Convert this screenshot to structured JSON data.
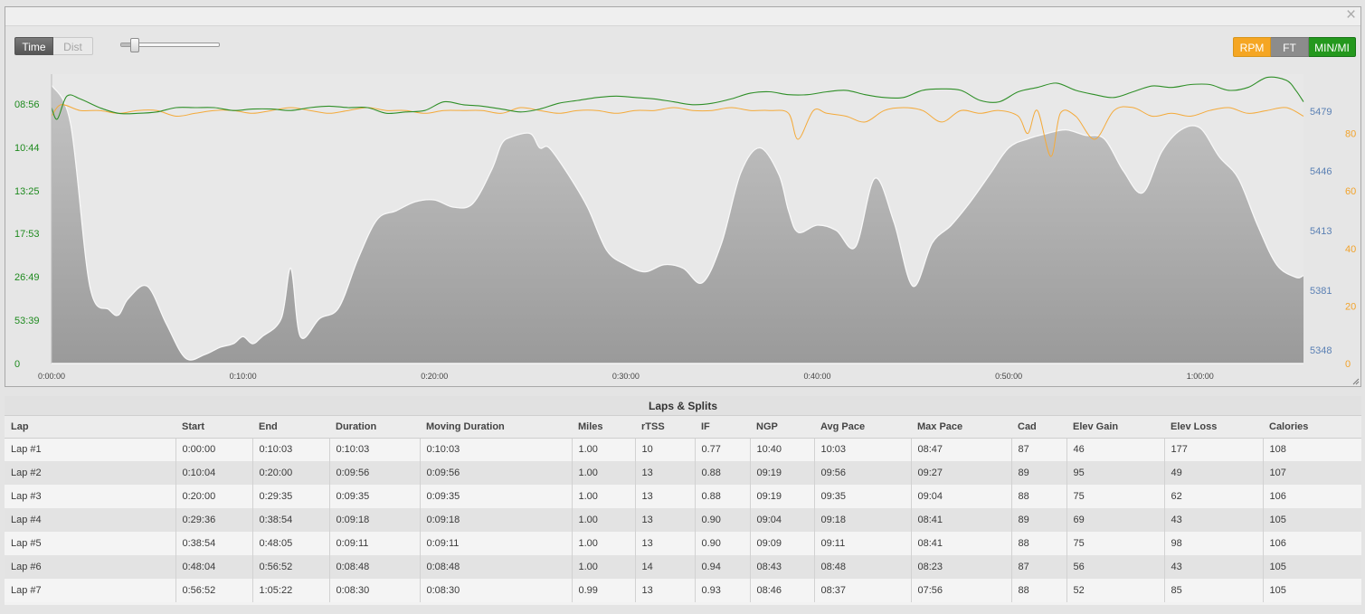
{
  "chart": {
    "close_glyph": "×",
    "xaxis_toggle": {
      "time_label": "Time",
      "dist_label": "Dist",
      "selected": "time"
    },
    "zoom_slider": {
      "value": 0.1
    },
    "series_buttons": [
      {
        "label": "RPM",
        "color": "#f5a623",
        "active": true
      },
      {
        "label": "FT",
        "color": "#8c8c8c",
        "active": true
      },
      {
        "label": "MIN/MI",
        "color": "#24981d",
        "active": true
      }
    ],
    "colors": {
      "elevation_fill": "#b9b9b9",
      "elevation_stroke": "#f8f8f8",
      "pace_line": "#2f8f28",
      "cadence_line": "#f4aa3a",
      "pace_axis": "#1e8a1e",
      "elev_axis": "#5b80b4",
      "cad_axis": "#f2a32b"
    },
    "left_axis_labels": [
      "08:56",
      "10:44",
      "13:25",
      "17:53",
      "26:49",
      "53:39",
      "0"
    ],
    "right_axis_elev": [
      "5479",
      "5446",
      "5413",
      "5381",
      "5348"
    ],
    "right_axis_cad": [
      "80",
      "60",
      "40",
      "20",
      "0"
    ],
    "x_ticks": [
      "0:00:00",
      "0:10:00",
      "0:20:00",
      "0:30:00",
      "0:40:00",
      "0:50:00",
      "1:00:00"
    ],
    "chart_data": {
      "type": "area",
      "xlabel": "Time",
      "x_unit": "minutes",
      "xlim": [
        0,
        65.4
      ],
      "series": [
        {
          "name": "Elevation (ft)",
          "axis": "right-inner",
          "ylim": [
            5335,
            5495
          ],
          "x": [
            0,
            1,
            2,
            3,
            3.5,
            4,
            5,
            6,
            7,
            8,
            8.8,
            9.5,
            10,
            10.5,
            11,
            12,
            12.5,
            13,
            14,
            15,
            16,
            17,
            18,
            19,
            20,
            21,
            22,
            23,
            23.5,
            24,
            25,
            25.5,
            26,
            27,
            28,
            29,
            30,
            31,
            32,
            33,
            34,
            35,
            36,
            37,
            38,
            38.5,
            39,
            40,
            41,
            42,
            43,
            44,
            45,
            46,
            47,
            48,
            49,
            50,
            51,
            52,
            53,
            54,
            55,
            56,
            57,
            58,
            59,
            60,
            61,
            62,
            63,
            64,
            65,
            65.4
          ],
          "values": [
            5490,
            5468,
            5378,
            5365,
            5362,
            5371,
            5378,
            5357,
            5338,
            5340,
            5344,
            5346,
            5350,
            5346,
            5350,
            5360,
            5388,
            5350,
            5360,
            5366,
            5393,
            5415,
            5420,
            5425,
            5426,
            5422,
            5424,
            5443,
            5457,
            5461,
            5463,
            5455,
            5455,
            5440,
            5422,
            5398,
            5390,
            5386,
            5390,
            5388,
            5380,
            5402,
            5441,
            5455,
            5440,
            5420,
            5408,
            5412,
            5409,
            5400,
            5438,
            5414,
            5378,
            5402,
            5412,
            5425,
            5440,
            5455,
            5460,
            5463,
            5465,
            5462,
            5460,
            5442,
            5430,
            5453,
            5465,
            5466,
            5450,
            5438,
            5412,
            5390,
            5383,
            5384
          ]
        },
        {
          "name": "Pace (min/mi)",
          "axis": "left",
          "ylim": [
            0,
            1
          ],
          "x": [
            0,
            0.3,
            0.8,
            1.5,
            2.5,
            3.5,
            4.5,
            5.5,
            6.5,
            7.5,
            8.5,
            9.5,
            10.5,
            11.5,
            12.5,
            13.5,
            14.5,
            15.5,
            16.5,
            17.5,
            18.5,
            19.5,
            20.5,
            21.5,
            22.5,
            23.5,
            24.5,
            25.5,
            26.5,
            27.5,
            28.5,
            29.5,
            30.5,
            31.5,
            32.5,
            33.5,
            34.5,
            35.5,
            36.5,
            37.5,
            38.5,
            39.5,
            40.5,
            41.5,
            42.5,
            43.5,
            44.5,
            45.5,
            46.5,
            47.5,
            48.5,
            49.5,
            50.5,
            51.5,
            52.5,
            53.5,
            54.5,
            55.5,
            56.5,
            57.5,
            58.5,
            59.5,
            60.5,
            61.5,
            62.5,
            63.5,
            64.5,
            65,
            65.4
          ],
          "values": [
            0.89,
            0.85,
            0.93,
            0.92,
            0.89,
            0.87,
            0.87,
            0.875,
            0.89,
            0.89,
            0.89,
            0.88,
            0.885,
            0.885,
            0.88,
            0.89,
            0.895,
            0.89,
            0.89,
            0.87,
            0.875,
            0.88,
            0.91,
            0.9,
            0.895,
            0.885,
            0.875,
            0.885,
            0.905,
            0.915,
            0.925,
            0.93,
            0.925,
            0.92,
            0.91,
            0.9,
            0.905,
            0.92,
            0.94,
            0.945,
            0.935,
            0.935,
            0.945,
            0.95,
            0.935,
            0.925,
            0.925,
            0.95,
            0.955,
            0.95,
            0.915,
            0.91,
            0.945,
            0.96,
            0.975,
            0.95,
            0.935,
            0.925,
            0.945,
            0.965,
            0.96,
            0.97,
            0.97,
            0.95,
            0.96,
            0.995,
            0.985,
            0.95,
            0.91
          ]
        },
        {
          "name": "Cadence (rpm)",
          "axis": "right-outer",
          "ylim": [
            0,
            100
          ],
          "x": [
            0,
            0.5,
            1.5,
            2.5,
            3.5,
            4.5,
            5.5,
            6.5,
            7.5,
            8.5,
            9.5,
            10.5,
            11.5,
            12.5,
            13.5,
            14.5,
            15.5,
            16.5,
            17.5,
            18.5,
            19.5,
            20.5,
            21.5,
            22.5,
            23.5,
            24.5,
            25.5,
            26.5,
            27.5,
            28.5,
            29.5,
            30.5,
            31.5,
            32.5,
            33.5,
            34.5,
            35.5,
            36.5,
            37.5,
            38.5,
            39,
            39.8,
            40.5,
            41.5,
            42.5,
            43.5,
            44.5,
            45.5,
            46.5,
            47.5,
            48.5,
            49.5,
            50.5,
            51,
            51.5,
            52.2,
            52.7,
            53.5,
            54.5,
            55.5,
            56.5,
            57.5,
            58.5,
            59.5,
            60.5,
            61.5,
            62.5,
            63.5,
            64.5,
            65.4
          ],
          "values": [
            86,
            90,
            88,
            88,
            87,
            88,
            88,
            86,
            87,
            88,
            88,
            87,
            88,
            89,
            88,
            87,
            88,
            89,
            88,
            88,
            87,
            88,
            88,
            88,
            87,
            89,
            88,
            87,
            88,
            88,
            87,
            88,
            88,
            89,
            88,
            88,
            89,
            88,
            88,
            87,
            78,
            88,
            87,
            86,
            84,
            88,
            89,
            88,
            84,
            88,
            87,
            88,
            86,
            80,
            88,
            72,
            87,
            86,
            78,
            88,
            89,
            86,
            87,
            86,
            88,
            89,
            87,
            88,
            89,
            86
          ]
        }
      ]
    }
  },
  "laps": {
    "title": "Laps & Splits",
    "columns": [
      "Lap",
      "Start",
      "End",
      "Duration",
      "Moving Duration",
      "Miles",
      "rTSS",
      "IF",
      "NGP",
      "Avg Pace",
      "Max Pace",
      "Cad",
      "Elev Gain",
      "Elev Loss",
      "Calories"
    ],
    "rows": [
      [
        "Lap #1",
        "0:00:00",
        "0:10:03",
        "0:10:03",
        "0:10:03",
        "1.00",
        "10",
        "0.77",
        "10:40",
        "10:03",
        "08:47",
        "87",
        "46",
        "177",
        "108"
      ],
      [
        "Lap #2",
        "0:10:04",
        "0:20:00",
        "0:09:56",
        "0:09:56",
        "1.00",
        "13",
        "0.88",
        "09:19",
        "09:56",
        "09:27",
        "89",
        "95",
        "49",
        "107"
      ],
      [
        "Lap #3",
        "0:20:00",
        "0:29:35",
        "0:09:35",
        "0:09:35",
        "1.00",
        "13",
        "0.88",
        "09:19",
        "09:35",
        "09:04",
        "88",
        "75",
        "62",
        "106"
      ],
      [
        "Lap #4",
        "0:29:36",
        "0:38:54",
        "0:09:18",
        "0:09:18",
        "1.00",
        "13",
        "0.90",
        "09:04",
        "09:18",
        "08:41",
        "89",
        "69",
        "43",
        "105"
      ],
      [
        "Lap #5",
        "0:38:54",
        "0:48:05",
        "0:09:11",
        "0:09:11",
        "1.00",
        "13",
        "0.90",
        "09:09",
        "09:11",
        "08:41",
        "88",
        "75",
        "98",
        "106"
      ],
      [
        "Lap #6",
        "0:48:04",
        "0:56:52",
        "0:08:48",
        "0:08:48",
        "1.00",
        "14",
        "0.94",
        "08:43",
        "08:48",
        "08:23",
        "87",
        "56",
        "43",
        "105"
      ],
      [
        "Lap #7",
        "0:56:52",
        "1:05:22",
        "0:08:30",
        "0:08:30",
        "0.99",
        "13",
        "0.93",
        "08:46",
        "08:37",
        "07:56",
        "88",
        "52",
        "85",
        "105"
      ]
    ]
  }
}
